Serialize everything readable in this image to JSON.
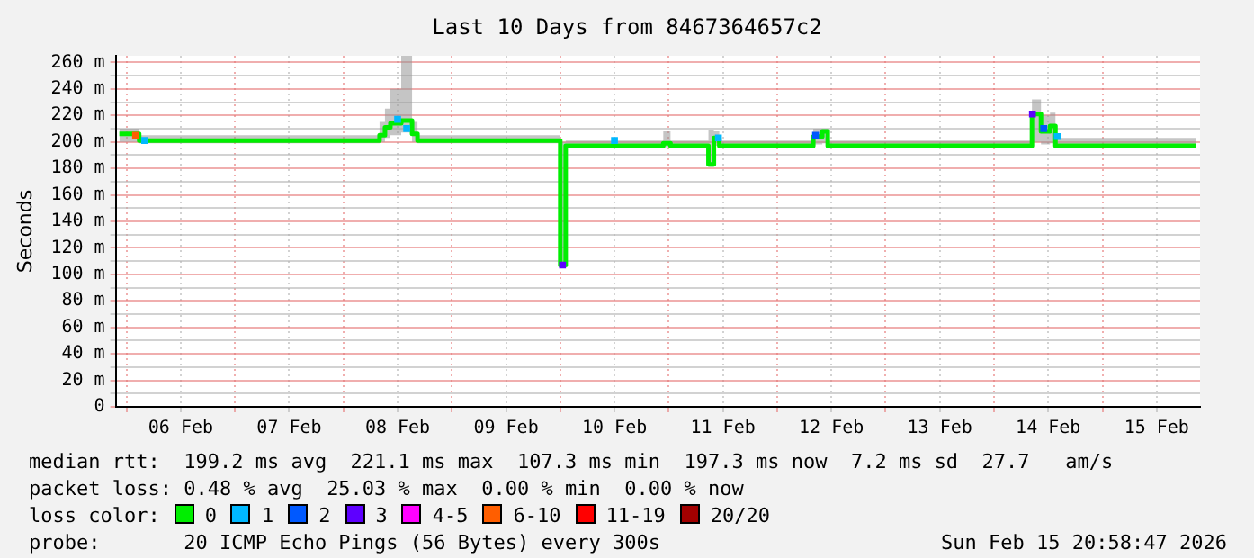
{
  "chart_data": {
    "type": "step",
    "title": "Last 10 Days from 8467364657c2",
    "ylabel": "Seconds",
    "legend_title": "loss color:",
    "legend": "bottom",
    "grid": true,
    "xlim": [
      "2026-02-05T21:36",
      "2026-02-15T21:36"
    ],
    "xticks": [
      {
        "value": "2026-02-06T00:00",
        "label": null
      },
      {
        "value": "2026-02-06T12:00",
        "label": "06 Feb"
      },
      {
        "value": "2026-02-07T00:00",
        "label": null
      },
      {
        "value": "2026-02-07T12:00",
        "label": "07 Feb"
      },
      {
        "value": "2026-02-08T00:00",
        "label": null
      },
      {
        "value": "2026-02-08T12:00",
        "label": "08 Feb"
      },
      {
        "value": "2026-02-09T00:00",
        "label": null
      },
      {
        "value": "2026-02-09T12:00",
        "label": "09 Feb"
      },
      {
        "value": "2026-02-10T00:00",
        "label": null
      },
      {
        "value": "2026-02-10T12:00",
        "label": "10 Feb"
      },
      {
        "value": "2026-02-11T00:00",
        "label": null
      },
      {
        "value": "2026-02-11T12:00",
        "label": "11 Feb"
      },
      {
        "value": "2026-02-12T00:00",
        "label": null
      },
      {
        "value": "2026-02-12T12:00",
        "label": "12 Feb"
      },
      {
        "value": "2026-02-13T00:00",
        "label": null
      },
      {
        "value": "2026-02-13T12:00",
        "label": "13 Feb"
      },
      {
        "value": "2026-02-14T00:00",
        "label": null
      },
      {
        "value": "2026-02-14T12:00",
        "label": "14 Feb"
      },
      {
        "value": "2026-02-15T00:00",
        "label": null
      },
      {
        "value": "2026-02-15T12:00",
        "label": "15 Feb"
      }
    ],
    "ylim": [
      0,
      265
    ],
    "yticks": [
      {
        "value": 0,
        "label": "0"
      },
      {
        "value": 10,
        "label": null
      },
      {
        "value": 20,
        "label": "20 m"
      },
      {
        "value": 30,
        "label": null
      },
      {
        "value": 40,
        "label": "40 m"
      },
      {
        "value": 50,
        "label": null
      },
      {
        "value": 60,
        "label": "60 m"
      },
      {
        "value": 70,
        "label": null
      },
      {
        "value": 80,
        "label": "80 m"
      },
      {
        "value": 90,
        "label": null
      },
      {
        "value": 100,
        "label": "100 m"
      },
      {
        "value": 110,
        "label": null
      },
      {
        "value": 120,
        "label": "120 m"
      },
      {
        "value": 130,
        "label": null
      },
      {
        "value": 140,
        "label": "140 m"
      },
      {
        "value": 150,
        "label": null
      },
      {
        "value": 160,
        "label": "160 m"
      },
      {
        "value": 170,
        "label": null
      },
      {
        "value": 180,
        "label": "180 m"
      },
      {
        "value": 190,
        "label": null
      },
      {
        "value": 200,
        "label": "200 m"
      },
      {
        "value": 210,
        "label": null
      },
      {
        "value": 220,
        "label": "220 m"
      },
      {
        "value": 230,
        "label": null
      },
      {
        "value": 240,
        "label": "240 m"
      },
      {
        "value": 250,
        "label": null
      },
      {
        "value": 260,
        "label": "260 m"
      }
    ],
    "annotations": [
      "median rtt:  199.2 ms avg  221.1 ms max  107.3 ms min  197.3 ms now  7.2 ms sd  27.7   am/s",
      "packet loss: 0.48 % avg  25.03 % max  0.00 % min  0.00 % now",
      "probe:       20 ICMP Echo Pings (56 Bytes) every 300s",
      "Sun Feb 15 20:58:47 2026"
    ],
    "series": [
      {
        "name": "0",
        "color": "#00ee00",
        "x": [
          "2026-02-05T22:24",
          "2026-02-06T02:48",
          "2026-02-08T06:48",
          "2026-02-08T08:00",
          "2026-02-08T09:12",
          "2026-02-08T10:24",
          "2026-02-08T12:48",
          "2026-02-08T15:12",
          "2026-02-08T16:24",
          "2026-02-10T00:00",
          "2026-02-10T01:12",
          "2026-02-10T22:48",
          "2026-02-11T00:24",
          "2026-02-11T08:48",
          "2026-02-11T10:00",
          "2026-02-11T11:12",
          "2026-02-12T08:00",
          "2026-02-12T10:00",
          "2026-02-12T11:12",
          "2026-02-14T08:24",
          "2026-02-14T10:24",
          "2026-02-14T12:24",
          "2026-02-14T13:36",
          "2026-02-15T20:48"
        ],
        "values": [
          206,
          201,
          201,
          205,
          211,
          214,
          216,
          206,
          201,
          107,
          197,
          199,
          197,
          183,
          203,
          197,
          204,
          208,
          197,
          221,
          208,
          212,
          197,
          197
        ],
        "lower": [
          200,
          199,
          199,
          200,
          203,
          205,
          207,
          200,
          199,
          105,
          196,
          196,
          196,
          181,
          197,
          196,
          198,
          199,
          196,
          200,
          198,
          199,
          196,
          196
        ],
        "upper": [
          210,
          205,
          205,
          215,
          225,
          240,
          265,
          215,
          205,
          200,
          201,
          208,
          201,
          209,
          208,
          201,
          210,
          210,
          201,
          232,
          220,
          222,
          203,
          203
        ]
      },
      {
        "name": "1",
        "type": "scatter",
        "color": "#00b8ff",
        "x": [
          "2026-02-06T04:00",
          "2026-02-08T12:00",
          "2026-02-08T14:00",
          "2026-02-10T12:00",
          "2026-02-11T11:00",
          "2026-02-14T14:00"
        ],
        "values": [
          201,
          217,
          210,
          201,
          203,
          204
        ]
      },
      {
        "name": "2",
        "type": "scatter",
        "color": "#0059ff",
        "x": [
          "2026-02-12T08:30",
          "2026-02-14T11:00"
        ],
        "values": [
          205,
          210
        ]
      },
      {
        "name": "3",
        "type": "scatter",
        "color": "#5e00ff",
        "x": [
          "2026-02-10T00:30",
          "2026-02-14T08:30"
        ],
        "values": [
          107,
          221
        ]
      },
      {
        "name": "4-5",
        "type": "scatter",
        "color": "#ff00ff"
      },
      {
        "name": "6-10",
        "type": "scatter",
        "color": "#ff5e00",
        "x": [
          "2026-02-06T02:00"
        ],
        "values": [
          205
        ]
      },
      {
        "name": "11-19",
        "type": "scatter",
        "color": "#ff0000"
      },
      {
        "name": "20/20",
        "type": "scatter",
        "color": "#a10000"
      }
    ]
  }
}
